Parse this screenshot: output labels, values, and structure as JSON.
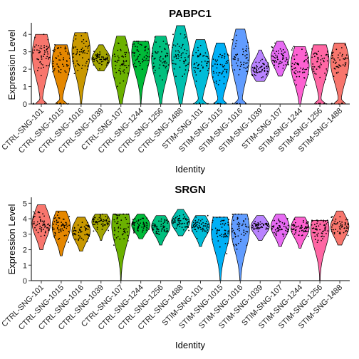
{
  "chart_data": [
    {
      "type": "violin",
      "title": "PABPC1",
      "xlabel": "Identity",
      "ylabel": "Expression Level",
      "ylim": [
        0,
        4.5
      ],
      "yticks": [
        0,
        1,
        2,
        3,
        4
      ],
      "grid": false,
      "legend": "none",
      "categories": [
        "CTRL-SNG-101",
        "CTRL-SNG-1015",
        "CTRL-SNG-1016",
        "CTRL-SNG-1039",
        "CTRL-SNG-107",
        "CTRL-SNG-1244",
        "CTRL-SNG-1256",
        "CTRL-SNG-1488",
        "STIM-SNG-101",
        "STIM-SNG-1015",
        "STIM-SNG-1016",
        "STIM-SNG-1039",
        "STIM-SNG-107",
        "STIM-SNG-1244",
        "STIM-SNG-1256",
        "STIM-SNG-1488"
      ],
      "colors": [
        "#F8766D",
        "#E58700",
        "#C99800",
        "#A3A500",
        "#6BB100",
        "#00BA38",
        "#00BF7D",
        "#00C0AF",
        "#00BCD8",
        "#00B0F6",
        "#619CFF",
        "#B983FF",
        "#E76BF3",
        "#FD61D1",
        "#FF67A4",
        "#F8766D"
      ],
      "series": [
        {
          "min": 0.0,
          "max": 4.0,
          "median": 2.8,
          "zero_bump": true
        },
        {
          "min": 0.0,
          "max": 3.4,
          "median": 2.4,
          "zero_bump": true
        },
        {
          "min": 0.0,
          "max": 4.1,
          "median": 3.0,
          "zero_bump": false
        },
        {
          "min": 1.9,
          "max": 3.4,
          "median": 2.6,
          "zero_bump": false
        },
        {
          "min": 0.0,
          "max": 3.9,
          "median": 2.4,
          "zero_bump": false
        },
        {
          "min": 0.0,
          "max": 3.6,
          "median": 2.9,
          "zero_bump": false
        },
        {
          "min": 0.0,
          "max": 3.9,
          "median": 2.6,
          "zero_bump": false
        },
        {
          "min": 0.0,
          "max": 4.5,
          "median": 2.7,
          "zero_bump": false
        },
        {
          "min": 0.0,
          "max": 3.7,
          "median": 2.3,
          "zero_bump": true
        },
        {
          "min": 0.0,
          "max": 3.5,
          "median": 2.1,
          "zero_bump": true
        },
        {
          "min": 0.0,
          "max": 4.3,
          "median": 2.7,
          "zero_bump": true
        },
        {
          "min": 1.3,
          "max": 3.1,
          "median": 2.0,
          "zero_bump": false
        },
        {
          "min": 1.6,
          "max": 3.6,
          "median": 2.7,
          "zero_bump": false
        },
        {
          "min": 0.0,
          "max": 3.3,
          "median": 2.2,
          "zero_bump": false
        },
        {
          "min": 0.0,
          "max": 3.4,
          "median": 2.5,
          "zero_bump": true
        },
        {
          "min": 0.0,
          "max": 3.5,
          "median": 2.4,
          "zero_bump": true
        }
      ]
    },
    {
      "type": "violin",
      "title": "SRGN",
      "xlabel": "Identity",
      "ylabel": "Expression Level",
      "ylim": [
        0,
        5.2
      ],
      "yticks": [
        0,
        1,
        2,
        3,
        4,
        5
      ],
      "grid": false,
      "legend": "none",
      "categories": [
        "CTRL-SNG-101",
        "CTRL-SNG-1015",
        "CTRL-SNG-1016",
        "CTRL-SNG-1039",
        "CTRL-SNG-107",
        "CTRL-SNG-1244",
        "CTRL-SNG-1256",
        "CTRL-SNG-1488",
        "STIM-SNG-101",
        "STIM-SNG-1015",
        "STIM-SNG-1016",
        "STIM-SNG-1039",
        "STIM-SNG-107",
        "STIM-SNG-1244",
        "STIM-SNG-1256",
        "STIM-SNG-1488"
      ],
      "colors": [
        "#F8766D",
        "#E58700",
        "#C99800",
        "#A3A500",
        "#6BB100",
        "#00BA38",
        "#00BF7D",
        "#00C0AF",
        "#00BCD8",
        "#00B0F6",
        "#619CFF",
        "#B983FF",
        "#E76BF3",
        "#FD61D1",
        "#FF67A4",
        "#F8766D"
      ],
      "series": [
        {
          "min": 2.0,
          "max": 4.9,
          "median": 3.7,
          "zero_bump": false
        },
        {
          "min": 1.6,
          "max": 4.5,
          "median": 3.5,
          "zero_bump": false
        },
        {
          "min": 1.9,
          "max": 4.1,
          "median": 3.2,
          "zero_bump": false
        },
        {
          "min": 2.6,
          "max": 4.3,
          "median": 3.8,
          "zero_bump": false
        },
        {
          "min": 0.0,
          "max": 4.3,
          "median": 3.6,
          "zero_bump": false
        },
        {
          "min": 2.7,
          "max": 4.3,
          "median": 3.6,
          "zero_bump": false
        },
        {
          "min": 2.3,
          "max": 4.2,
          "median": 3.5,
          "zero_bump": false
        },
        {
          "min": 2.9,
          "max": 4.6,
          "median": 3.8,
          "zero_bump": false
        },
        {
          "min": 2.2,
          "max": 4.2,
          "median": 3.5,
          "zero_bump": false
        },
        {
          "min": 0.0,
          "max": 4.1,
          "median": 3.2,
          "zero_bump": false
        },
        {
          "min": 0.0,
          "max": 4.3,
          "median": 3.3,
          "zero_bump": false
        },
        {
          "min": 2.6,
          "max": 4.2,
          "median": 3.5,
          "zero_bump": false
        },
        {
          "min": 2.2,
          "max": 4.3,
          "median": 3.5,
          "zero_bump": false
        },
        {
          "min": 2.1,
          "max": 4.1,
          "median": 3.4,
          "zero_bump": false
        },
        {
          "min": 0.0,
          "max": 3.9,
          "median": 3.3,
          "zero_bump": false
        },
        {
          "min": 2.3,
          "max": 4.5,
          "median": 3.5,
          "zero_bump": false
        }
      ]
    }
  ]
}
